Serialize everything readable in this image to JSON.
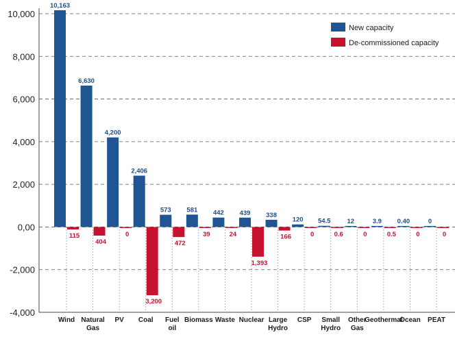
{
  "chart_data": {
    "type": "bar",
    "title": "",
    "xlabel": "",
    "ylabel": "",
    "ylim": [
      -4000,
      10000
    ],
    "yticks": [
      10000,
      8000,
      6000,
      4000,
      2000,
      0,
      -2000,
      -4000
    ],
    "ytick_labels": [
      "10,000",
      "8,000",
      "6,000",
      "4,000",
      "2,000",
      "0,00",
      "-2,000",
      "-4,000"
    ],
    "categories": [
      [
        "Wind"
      ],
      [
        "Natural",
        "Gas"
      ],
      [
        "PV"
      ],
      [
        "Coal"
      ],
      [
        "Fuel",
        "oil"
      ],
      [
        "Biomass"
      ],
      [
        "Waste"
      ],
      [
        "Nuclear"
      ],
      [
        "Large",
        "Hydro"
      ],
      [
        "CSP"
      ],
      [
        "Small",
        "Hydro"
      ],
      [
        "Other",
        "Gas"
      ],
      [
        "Geothermal"
      ],
      [
        "Ocean"
      ],
      [
        "PEAT"
      ]
    ],
    "series": [
      {
        "name": "New capacity",
        "color": "#1f5592",
        "values": [
          10163,
          6630,
          4200,
          2406,
          573,
          581,
          442,
          439,
          338,
          120,
          54.5,
          12,
          3.9,
          0.4,
          0
        ],
        "labels": [
          "10,163",
          "6,630",
          "4,200",
          "2,406",
          "573",
          "581",
          "442",
          "439",
          "338",
          "120",
          "54.5",
          "12",
          "3.9",
          "0.40",
          "0"
        ]
      },
      {
        "name": "De-commissioned capacity",
        "color": "#c4122f",
        "values": [
          -115,
          -404,
          0,
          -3200,
          -472,
          -39,
          -24,
          -1393,
          -166,
          0,
          -0.6,
          0,
          -0.5,
          0,
          0
        ],
        "labels": [
          "115",
          "404",
          "0",
          "3,200",
          "472",
          "39",
          "24",
          "1,393",
          "166",
          "0",
          "0.6",
          "0",
          "0.5",
          "0",
          "0"
        ]
      }
    ],
    "legend_position": "top-right",
    "grid": true
  }
}
